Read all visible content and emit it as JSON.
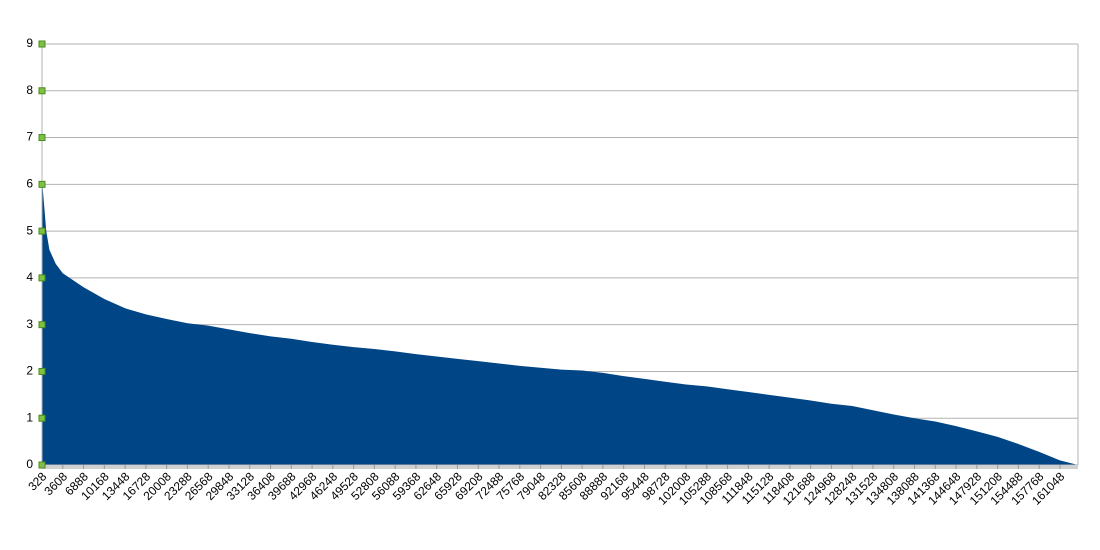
{
  "chart_data": {
    "type": "area",
    "color": "#004586",
    "grid": true,
    "x": [
      328,
      1000,
      1500,
      2500,
      3608,
      6888,
      10168,
      13448,
      16728,
      20008,
      23288,
      26568,
      29848,
      33128,
      36408,
      39688,
      42968,
      46248,
      49528,
      52808,
      56088,
      59368,
      62648,
      65928,
      69208,
      72488,
      75768,
      79048,
      82328,
      85608,
      88888,
      92168,
      95448,
      98728,
      102008,
      105288,
      108568,
      111848,
      115128,
      118408,
      121688,
      124968,
      128248,
      131528,
      134808,
      138088,
      141368,
      144648,
      147928,
      151208,
      154488,
      157768,
      161048,
      163900
    ],
    "values": [
      6.1,
      5.0,
      4.6,
      4.3,
      4.1,
      3.8,
      3.55,
      3.35,
      3.22,
      3.12,
      3.03,
      2.98,
      2.9,
      2.82,
      2.75,
      2.7,
      2.63,
      2.57,
      2.52,
      2.48,
      2.43,
      2.37,
      2.32,
      2.27,
      2.22,
      2.17,
      2.12,
      2.08,
      2.04,
      2.02,
      1.97,
      1.9,
      1.84,
      1.78,
      1.72,
      1.68,
      1.62,
      1.56,
      1.5,
      1.44,
      1.38,
      1.31,
      1.26,
      1.17,
      1.08,
      1.0,
      0.93,
      0.83,
      0.72,
      0.6,
      0.45,
      0.28,
      0.1,
      0
    ],
    "xlim": [
      328,
      163900
    ],
    "xticks": [
      328,
      3608,
      6888,
      10168,
      13448,
      16728,
      20008,
      23288,
      26568,
      29848,
      33128,
      36408,
      39688,
      42968,
      46248,
      49528,
      52808,
      56088,
      59368,
      62648,
      65928,
      69208,
      72488,
      75768,
      79048,
      82328,
      85608,
      88888,
      92168,
      95448,
      98728,
      102008,
      105288,
      108568,
      111848,
      115128,
      118408,
      121688,
      124968,
      128248,
      131528,
      134808,
      138088,
      141368,
      144648,
      147928,
      151208,
      154488,
      157768,
      161048
    ],
    "ylim": [
      0,
      9
    ],
    "yticks": [
      0,
      1,
      2,
      3,
      4,
      5,
      6,
      7,
      8,
      9
    ]
  }
}
